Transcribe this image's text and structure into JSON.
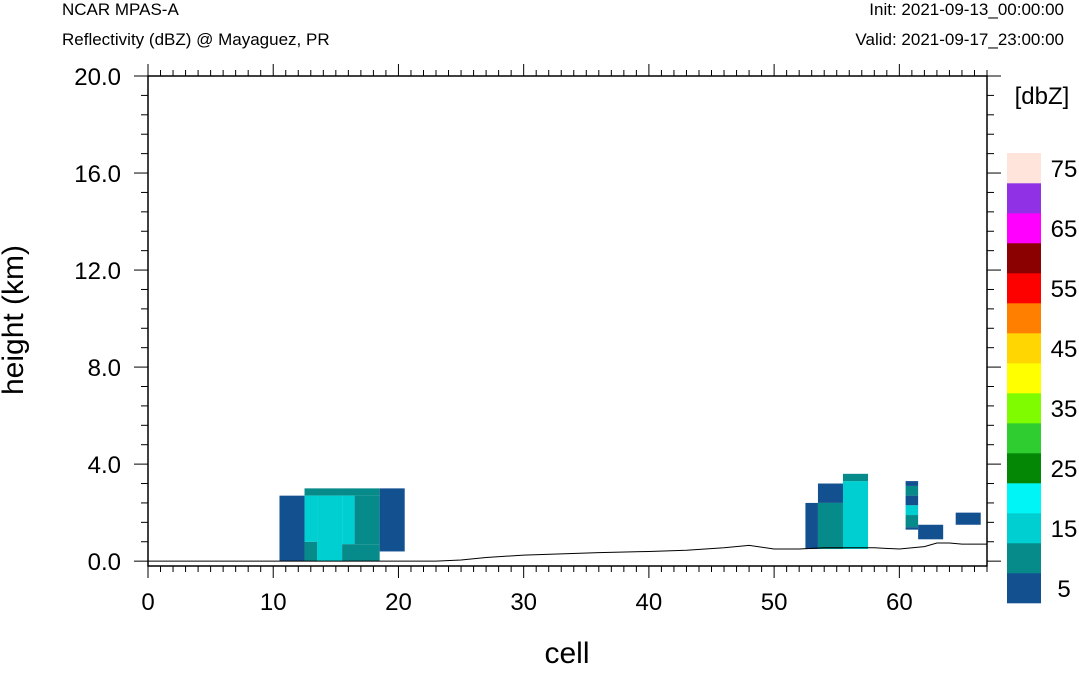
{
  "header": {
    "model": "NCAR MPAS-A",
    "field": "Reflectivity (dBZ) @ Mayaguez, PR",
    "init": "Init: 2021-09-13_00:00:00",
    "valid": "Valid: 2021-09-17_23:00:00"
  },
  "chart_data": {
    "type": "heatmap",
    "xlabel": "cell",
    "ylabel": "height (km)",
    "xlim": [
      0,
      67
    ],
    "ylim": [
      0,
      20
    ],
    "y_below_zero": -0.2,
    "x_ticks": [
      "0",
      "10",
      "20",
      "30",
      "40",
      "50",
      "60"
    ],
    "x_tick_values": [
      0,
      10,
      20,
      30,
      40,
      50,
      60
    ],
    "y_ticks": [
      "0.0",
      "4.0",
      "8.0",
      "12.0",
      "16.0",
      "20.0"
    ],
    "y_tick_values": [
      0,
      4,
      8,
      12,
      16,
      20
    ],
    "colorbar": {
      "unit_label": "[dbZ]",
      "levels": [
        5,
        10,
        15,
        20,
        25,
        30,
        35,
        40,
        45,
        50,
        55,
        60,
        65,
        70,
        75
      ],
      "tick_labels": [
        "5",
        "15",
        "25",
        "35",
        "45",
        "55",
        "65",
        "75"
      ],
      "tick_values": [
        5,
        15,
        25,
        35,
        45,
        55,
        65,
        75
      ],
      "colors": [
        "#135090",
        "#068a8a",
        "#00cfd2",
        "#00f6f6",
        "#048704",
        "#30cd30",
        "#7ffd00",
        "#ffff00",
        "#ffd502",
        "#ff7f00",
        "#fd0000",
        "#8b0000",
        "#ff00fe",
        "#9131e6",
        "#ffe4dc"
      ]
    },
    "cells": [
      {
        "x0": 10.5,
        "x1": 12.5,
        "y0": 0.0,
        "y1": 2.7,
        "level": 5
      },
      {
        "x0": 12.5,
        "x1": 18.5,
        "y0": 2.7,
        "y1": 3.0,
        "level": 10
      },
      {
        "x0": 12.5,
        "x1": 13.5,
        "y0": 0.0,
        "y1": 0.8,
        "level": 10
      },
      {
        "x0": 12.5,
        "x1": 13.5,
        "y0": 0.8,
        "y1": 2.7,
        "level": 15
      },
      {
        "x0": 13.5,
        "x1": 15.5,
        "y0": 0.0,
        "y1": 2.7,
        "level": 15
      },
      {
        "x0": 15.5,
        "x1": 16.5,
        "y0": 0.7,
        "y1": 2.7,
        "level": 15
      },
      {
        "x0": 15.5,
        "x1": 18.5,
        "y0": 0.0,
        "y1": 0.7,
        "level": 10
      },
      {
        "x0": 16.5,
        "x1": 18.5,
        "y0": 0.7,
        "y1": 2.7,
        "level": 10
      },
      {
        "x0": 18.5,
        "x1": 20.5,
        "y0": 0.4,
        "y1": 3.0,
        "level": 5
      },
      {
        "x0": 52.5,
        "x1": 53.5,
        "y0": 0.5,
        "y1": 2.4,
        "level": 5
      },
      {
        "x0": 53.5,
        "x1": 55.5,
        "y0": 2.4,
        "y1": 3.2,
        "level": 5
      },
      {
        "x0": 53.5,
        "x1": 55.5,
        "y0": 0.5,
        "y1": 2.4,
        "level": 10
      },
      {
        "x0": 55.5,
        "x1": 57.5,
        "y0": 0.5,
        "y1": 3.3,
        "level": 15
      },
      {
        "x0": 55.5,
        "x1": 57.5,
        "y0": 3.3,
        "y1": 3.6,
        "level": 10
      },
      {
        "x0": 60.5,
        "x1": 61.5,
        "y0": 3.1,
        "y1": 3.3,
        "level": 5
      },
      {
        "x0": 60.5,
        "x1": 61.5,
        "y0": 2.7,
        "y1": 3.1,
        "level": 10
      },
      {
        "x0": 60.5,
        "x1": 61.5,
        "y0": 2.3,
        "y1": 2.7,
        "level": 5
      },
      {
        "x0": 60.5,
        "x1": 61.5,
        "y0": 1.9,
        "y1": 2.3,
        "level": 15
      },
      {
        "x0": 60.5,
        "x1": 61.5,
        "y0": 1.4,
        "y1": 1.9,
        "level": 10
      },
      {
        "x0": 60.5,
        "x1": 61.5,
        "y0": 1.3,
        "y1": 1.4,
        "level": 5
      },
      {
        "x0": 61.5,
        "x1": 63.5,
        "y0": 0.9,
        "y1": 1.5,
        "level": 5
      },
      {
        "x0": 64.5,
        "x1": 66.5,
        "y0": 1.5,
        "y1": 2.0,
        "level": 5
      }
    ],
    "terrain": {
      "x": [
        0,
        5,
        10,
        15,
        20,
        23,
        25,
        27,
        30,
        33,
        36,
        40,
        43,
        46,
        48,
        50,
        52,
        54,
        56,
        58,
        60,
        62,
        63,
        64,
        65,
        66,
        67
      ],
      "y": [
        0.0,
        0.0,
        0.0,
        0.0,
        0.0,
        0.0,
        0.05,
        0.15,
        0.25,
        0.3,
        0.35,
        0.4,
        0.45,
        0.55,
        0.65,
        0.5,
        0.5,
        0.55,
        0.55,
        0.55,
        0.5,
        0.6,
        0.75,
        0.75,
        0.7,
        0.7,
        0.7
      ]
    }
  }
}
